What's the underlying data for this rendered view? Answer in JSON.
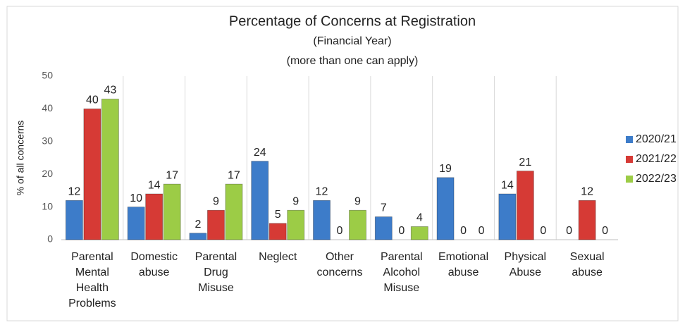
{
  "chart_data": {
    "type": "bar",
    "title": "Percentage of Concerns at Registration",
    "subtitle": [
      "(Financial Year)",
      "(more than one can apply)"
    ],
    "y_label": "% of all concerns",
    "categories": [
      "Parental Mental Health Problems",
      "Domestic abuse",
      "Parental Drug Misuse",
      "Neglect",
      "Other concerns",
      "Parental Alcohol Misuse",
      "Emotional abuse",
      "Physical Abuse",
      "Sexual abuse"
    ],
    "series": [
      {
        "name": "2020/21",
        "color": "#3d7cc9",
        "values": [
          12,
          10,
          2,
          24,
          12,
          7,
          19,
          14,
          0
        ]
      },
      {
        "name": "2021/22",
        "color": "#d63a35",
        "values": [
          40,
          14,
          9,
          5,
          0,
          0,
          0,
          21,
          12
        ]
      },
      {
        "name": "2022/23",
        "color": "#9ccc46",
        "values": [
          43,
          17,
          17,
          9,
          9,
          4,
          0,
          0,
          0
        ]
      }
    ],
    "ylim": [
      0,
      50
    ],
    "yticks": [
      0,
      10,
      20,
      30,
      40,
      50
    ],
    "legend": "right"
  }
}
